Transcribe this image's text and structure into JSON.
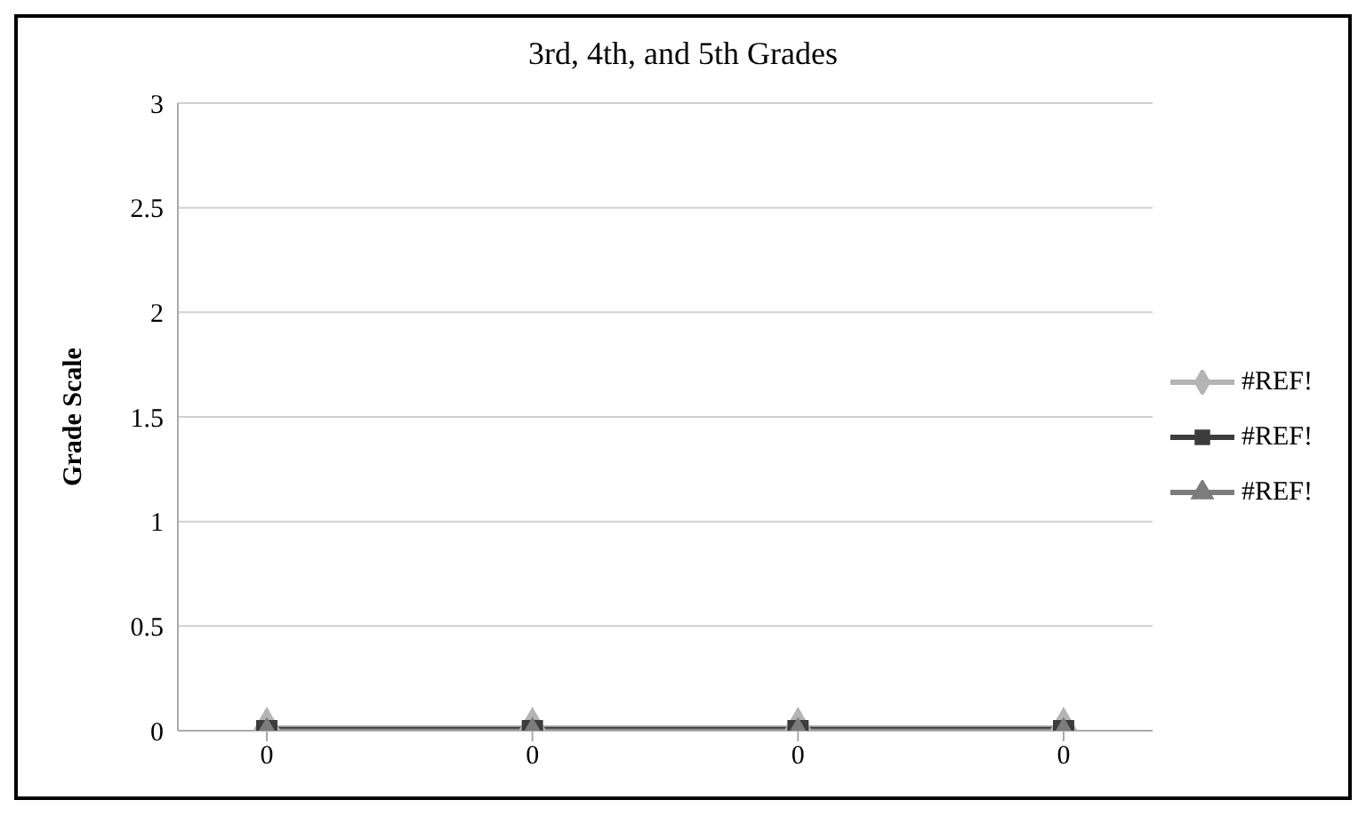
{
  "chart_data": {
    "type": "line",
    "title": "3rd, 4th, and 5th Grades",
    "ylabel": "Grade Scale",
    "categories": [
      "0",
      "0",
      "0",
      "0"
    ],
    "series": [
      {
        "name": "#REF!",
        "color": "#b4b4b4",
        "values": [
          0,
          0,
          0,
          0
        ],
        "marker": "diamond"
      },
      {
        "name": "#REF!",
        "color": "#3c3c3c",
        "values": [
          0,
          0,
          0,
          0
        ],
        "marker": "square"
      },
      {
        "name": "#REF!",
        "color": "#7c7c7c",
        "values": [
          0,
          0,
          0,
          0
        ],
        "marker": "triangle"
      }
    ],
    "ylim": [
      0,
      3
    ],
    "yticks": [
      0,
      0.5,
      1,
      1.5,
      2,
      2.5,
      3
    ],
    "grid": "y",
    "legend": "right"
  }
}
